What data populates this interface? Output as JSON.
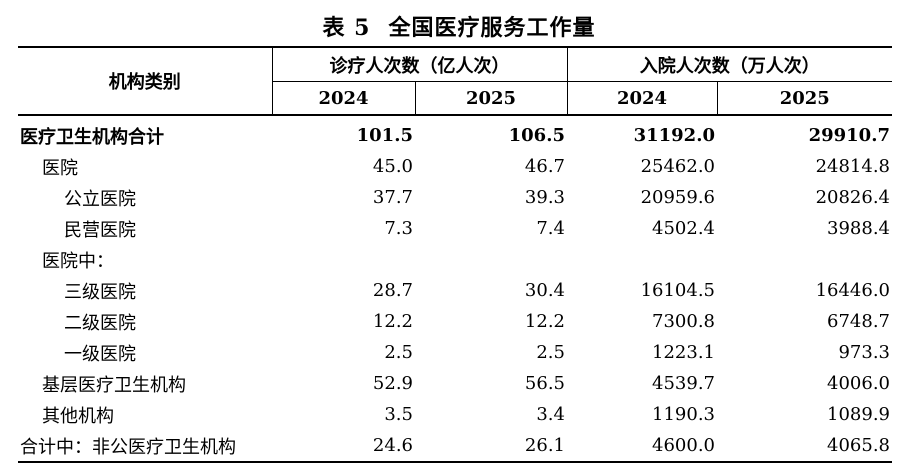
{
  "title": {
    "label": "表 5",
    "text": "全国医疗服务工作量"
  },
  "header": {
    "category": "机构类别",
    "group1": "诊疗人次数（亿人次）",
    "group2": "入院人次数（万人次）",
    "years": [
      "2024",
      "2025",
      "2024",
      "2025"
    ]
  },
  "rows": [
    {
      "label": "医疗卫生机构合计",
      "v1": "101.5",
      "v2": "106.5",
      "v3": "31192.0",
      "v4": "29910.7"
    },
    {
      "label": "医院",
      "v1": "45.0",
      "v2": "46.7",
      "v3": "25462.0",
      "v4": "24814.8"
    },
    {
      "label": "公立医院",
      "v1": "37.7",
      "v2": "39.3",
      "v3": "20959.6",
      "v4": "20826.4"
    },
    {
      "label": "民营医院",
      "v1": "7.3",
      "v2": "7.4",
      "v3": "4502.4",
      "v4": "3988.4"
    },
    {
      "label": "医院中：",
      "v1": "",
      "v2": "",
      "v3": "",
      "v4": ""
    },
    {
      "label": "三级医院",
      "v1": "28.7",
      "v2": "30.4",
      "v3": "16104.5",
      "v4": "16446.0"
    },
    {
      "label": "二级医院",
      "v1": "12.2",
      "v2": "12.2",
      "v3": "7300.8",
      "v4": "6748.7"
    },
    {
      "label": "一级医院",
      "v1": "2.5",
      "v2": "2.5",
      "v3": "1223.1",
      "v4": "973.3"
    },
    {
      "label": "基层医疗卫生机构",
      "v1": "52.9",
      "v2": "56.5",
      "v3": "4539.7",
      "v4": "4006.0"
    },
    {
      "label": "其他机构",
      "v1": "3.5",
      "v2": "3.4",
      "v3": "1190.3",
      "v4": "1089.9"
    },
    {
      "label": "合计中：非公医疗卫生机构",
      "v1": "24.6",
      "v2": "26.1",
      "v3": "4600.0",
      "v4": "4065.8"
    }
  ]
}
